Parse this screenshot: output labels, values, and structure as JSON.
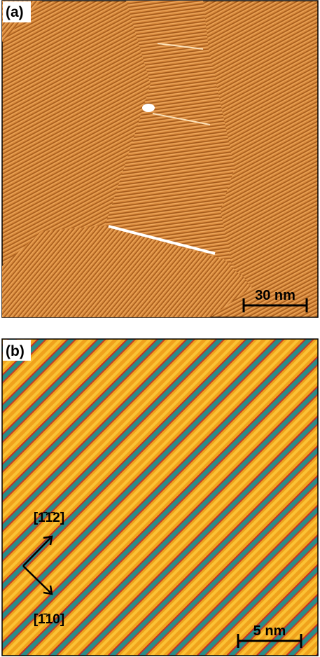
{
  "panels": [
    {
      "label": "(a)",
      "scale_bar": "30 nm"
    },
    {
      "label": "(b)",
      "directions": [
        "[1̄1̄2]",
        "[1̄10]"
      ],
      "scale_bar": "5 nm"
    }
  ]
}
